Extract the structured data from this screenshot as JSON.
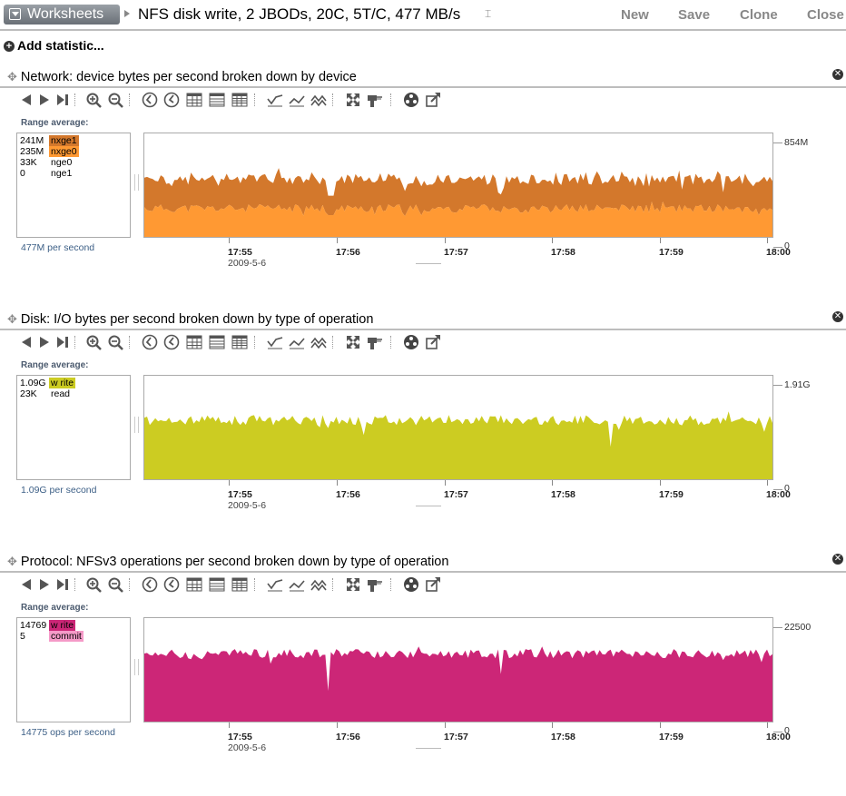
{
  "header": {
    "worksheets_label": "Worksheets",
    "title": "NFS disk write, 2 JBODs, 20C, 5T/C, 477 MB/s",
    "actions": [
      "New",
      "Save",
      "Clone",
      "Close"
    ]
  },
  "add_statistic_label": "Add statistic...",
  "panels": [
    {
      "title": "Network: device bytes per second broken down by device",
      "range_label": "Range average:",
      "legend": [
        {
          "value": "241M",
          "name": "nxge1",
          "color": "#d3782c"
        },
        {
          "value": "235M",
          "name": "nxge0",
          "color": "#ff9933"
        },
        {
          "value": "33K",
          "name": "nge0",
          "color": ""
        },
        {
          "value": "0",
          "name": "nge1",
          "color": ""
        }
      ],
      "rate": "477M per second",
      "ymax": "854M",
      "ymin": "0",
      "x_ticks": [
        "17:55",
        "17:56",
        "17:57",
        "17:58",
        "17:59",
        "18:00"
      ],
      "date": "2009-5-6",
      "chart_data": {
        "type": "area",
        "stacked": true,
        "ylim": [
          0,
          854
        ],
        "x_ticks": [
          "17:55",
          "17:56",
          "17:57",
          "17:58",
          "17:59",
          "18:00"
        ],
        "series": [
          {
            "name": "nxge0",
            "color": "#ff9933",
            "average": 235
          },
          {
            "name": "nxge1",
            "color": "#d3782c",
            "average": 241
          }
        ]
      }
    },
    {
      "title": "Disk: I/O bytes per second broken down by type of operation",
      "range_label": "Range average:",
      "legend": [
        {
          "value": "1.09G",
          "name": "w rite",
          "color": "#cccc22"
        },
        {
          "value": "23K",
          "name": "read",
          "color": ""
        }
      ],
      "rate": "1.09G per second",
      "ymax": "1.91G",
      "ymin": "0",
      "x_ticks": [
        "17:55",
        "17:56",
        "17:57",
        "17:58",
        "17:59",
        "18:00"
      ],
      "date": "2009-5-6",
      "chart_data": {
        "type": "area",
        "ylim": [
          0,
          1.91
        ],
        "x_ticks": [
          "17:55",
          "17:56",
          "17:57",
          "17:58",
          "17:59",
          "18:00"
        ],
        "series": [
          {
            "name": "w rite",
            "color": "#cccc22",
            "average": 1.09
          }
        ]
      }
    },
    {
      "title": "Protocol: NFSv3 operations per second broken down by type of operation",
      "range_label": "Range average:",
      "legend": [
        {
          "value": "14769",
          "name": "w rite",
          "color": "#cc2677"
        },
        {
          "value": "5",
          "name": "commit",
          "color": "#f59ac8"
        }
      ],
      "rate": "14775 ops per second",
      "ymax": "22500",
      "ymin": "0",
      "x_ticks": [
        "17:55",
        "17:56",
        "17:57",
        "17:58",
        "17:59",
        "18:00"
      ],
      "date": "2009-5-6",
      "chart_data": {
        "type": "area",
        "ylim": [
          0,
          22500
        ],
        "x_ticks": [
          "17:55",
          "17:56",
          "17:57",
          "17:58",
          "17:59",
          "18:00"
        ],
        "series": [
          {
            "name": "w rite",
            "color": "#cc2677",
            "average": 14769
          }
        ]
      }
    }
  ]
}
